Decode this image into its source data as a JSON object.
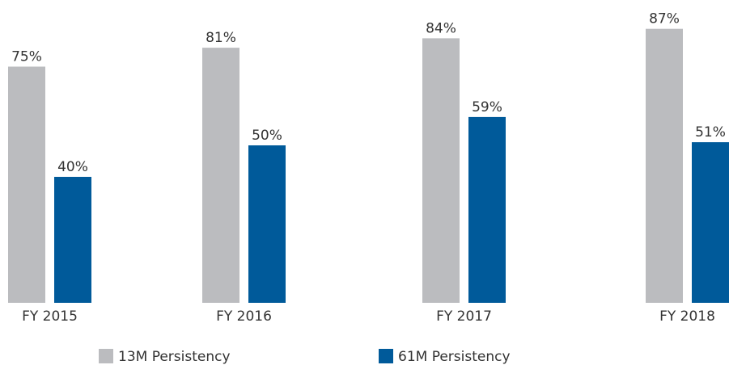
{
  "chart_data": {
    "type": "bar",
    "categories": [
      "FY 2015",
      "FY 2016",
      "FY 2017",
      "FY 2018"
    ],
    "series": [
      {
        "name": "13M Persistency",
        "color": "#bbbcbf",
        "values": [
          75,
          81,
          84,
          87
        ],
        "value_labels": [
          "75%",
          "81%",
          "84%",
          "87%"
        ]
      },
      {
        "name": "61M Persistency",
        "color": "#005a9a",
        "values": [
          40,
          50,
          59,
          51
        ],
        "value_labels": [
          "40%",
          "50%",
          "59%",
          "51%"
        ]
      }
    ]
  }
}
